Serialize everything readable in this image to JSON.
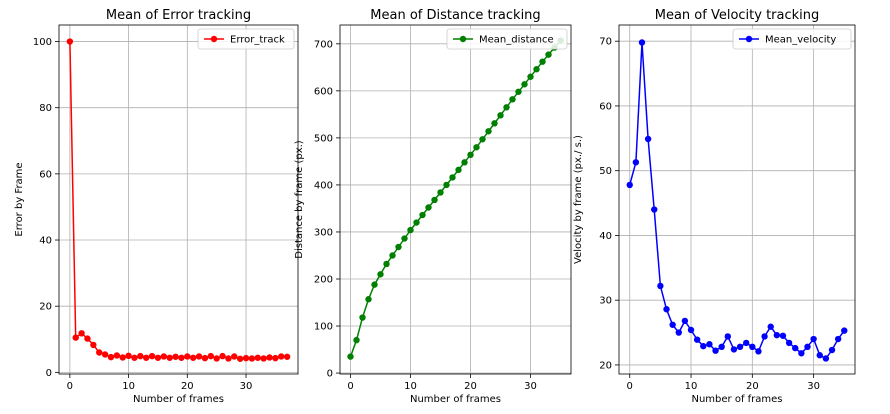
{
  "chart_data": [
    {
      "type": "line",
      "title": "Mean of Error tracking",
      "xlabel": "Number of frames",
      "ylabel": "Error by Frame",
      "xlim": [
        -1.85,
        38.85
      ],
      "ylim": [
        -0.5,
        105
      ],
      "xticks": [
        0,
        10,
        20,
        30
      ],
      "yticks": [
        0,
        20,
        40,
        60,
        80,
        100
      ],
      "grid": true,
      "legend_position": "top-right",
      "series": [
        {
          "name": "Error_track",
          "color": "#ff0000",
          "x": [
            0,
            1,
            2,
            3,
            4,
            5,
            6,
            7,
            8,
            9,
            10,
            11,
            12,
            13,
            14,
            15,
            16,
            17,
            18,
            19,
            20,
            21,
            22,
            23,
            24,
            25,
            26,
            27,
            28,
            29,
            30,
            31,
            32,
            33,
            34,
            35,
            36,
            37
          ],
          "y": [
            100,
            10.5,
            11.8,
            10.2,
            8.3,
            6.0,
            5.4,
            4.6,
            5.1,
            4.5,
            5.0,
            4.4,
            4.9,
            4.4,
            4.9,
            4.4,
            4.8,
            4.4,
            4.7,
            4.4,
            4.8,
            4.4,
            4.8,
            4.3,
            4.9,
            4.2,
            4.9,
            4.2,
            4.8,
            4.1,
            4.3,
            4.2,
            4.4,
            4.2,
            4.5,
            4.3,
            4.8,
            4.7
          ]
        }
      ]
    },
    {
      "type": "line",
      "title": "Mean of Distance tracking",
      "xlabel": "Number of frames",
      "ylabel": "Distance by frame (px.)",
      "xlim": [
        -1.75,
        36.75
      ],
      "ylim": [
        -2,
        740
      ],
      "xticks": [
        0,
        10,
        20,
        30
      ],
      "yticks": [
        0,
        100,
        200,
        300,
        400,
        500,
        600,
        700
      ],
      "grid": true,
      "legend_position": "top-right",
      "series": [
        {
          "name": "Mean_distance",
          "color": "#008000",
          "x": [
            0,
            1,
            2,
            3,
            4,
            5,
            6,
            7,
            8,
            9,
            10,
            11,
            12,
            13,
            14,
            15,
            16,
            17,
            18,
            19,
            20,
            21,
            22,
            23,
            24,
            25,
            26,
            27,
            28,
            29,
            30,
            31,
            32,
            33,
            34,
            35
          ],
          "y": [
            35,
            70,
            118,
            157,
            188,
            210,
            232,
            250,
            268,
            286,
            304,
            320,
            336,
            352,
            368,
            384,
            400,
            416,
            432,
            448,
            464,
            480,
            497,
            514,
            531,
            548,
            565,
            582,
            598,
            614,
            630,
            646,
            662,
            677,
            692,
            707
          ]
        }
      ]
    },
    {
      "type": "line",
      "title": "Mean of Velocity tracking",
      "xlabel": "Number of frames",
      "ylabel": "Velocity by frame (px./ s.)",
      "xlim": [
        -1.75,
        36.75
      ],
      "ylim": [
        18.6,
        72.5
      ],
      "xticks": [
        0,
        10,
        20,
        30
      ],
      "yticks": [
        20,
        30,
        40,
        50,
        60,
        70
      ],
      "grid": true,
      "legend_position": "top-right",
      "series": [
        {
          "name": "Mean_velocity",
          "color": "#0000ff",
          "x": [
            0,
            1,
            2,
            3,
            4,
            5,
            6,
            7,
            8,
            9,
            10,
            11,
            12,
            13,
            14,
            15,
            16,
            17,
            18,
            19,
            20,
            21,
            22,
            23,
            24,
            25,
            26,
            27,
            28,
            29,
            30,
            31,
            32,
            33,
            34,
            35
          ],
          "y": [
            47.8,
            51.3,
            69.8,
            54.9,
            44.0,
            32.2,
            28.6,
            26.2,
            25.0,
            26.8,
            25.4,
            23.9,
            22.9,
            23.2,
            22.2,
            22.8,
            24.4,
            22.4,
            22.8,
            23.4,
            22.8,
            22.1,
            24.4,
            25.9,
            24.6,
            24.5,
            23.4,
            22.6,
            21.8,
            22.8,
            24.0,
            21.5,
            21.0,
            22.3,
            24.0,
            25.3
          ]
        }
      ]
    }
  ]
}
